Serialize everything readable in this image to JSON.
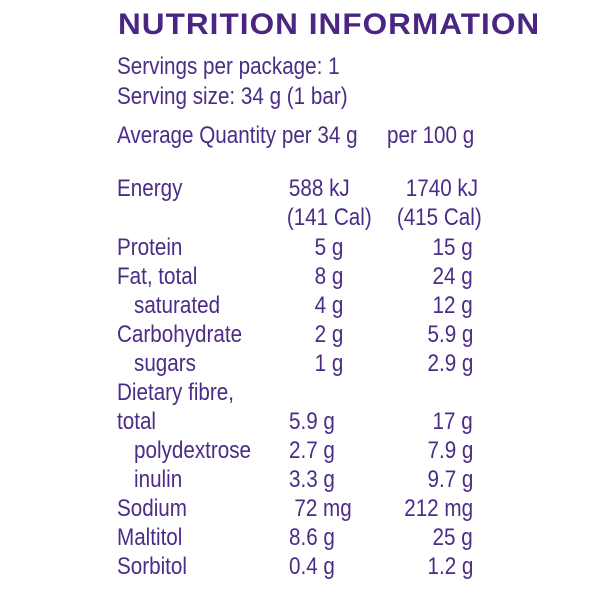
{
  "title": "NUTRITION INFORMATION",
  "servings_per_package": "Servings per package: 1",
  "serving_size": "Serving size: 34 g (1 bar)",
  "header": {
    "average_quantity": "Average Quantity per 34 g",
    "per_100g": "per 100 g"
  },
  "energy": {
    "label": "Energy",
    "per_serve_kj": "588 kJ",
    "per_100g_kj": "1740 kJ",
    "per_serve_cal": "(141 Cal)",
    "per_100g_cal": "(415 Cal)"
  },
  "rows": [
    {
      "label": "Protein",
      "per_serve": "5 g",
      "per_100g": "15 g"
    },
    {
      "label": "Fat, total",
      "per_serve": "8 g",
      "per_100g": "24 g"
    },
    {
      "label": "saturated",
      "per_serve": "4 g",
      "per_100g": "12 g"
    },
    {
      "label": "Carbohydrate",
      "per_serve": "2 g",
      "per_100g": "5.9 g"
    },
    {
      "label": "sugars",
      "per_serve": "1 g",
      "per_100g": "2.9 g"
    },
    {
      "label": "Dietary fibre,"
    },
    {
      "label": "total",
      "per_serve": "5.9 g",
      "per_100g": "17 g"
    },
    {
      "label": "polydextrose",
      "per_serve": "2.7 g",
      "per_100g": "7.9 g"
    },
    {
      "label": "inulin",
      "per_serve": "3.3 g",
      "per_100g": "9.7 g"
    },
    {
      "label": "Sodium",
      "per_serve": "72 mg",
      "per_100g": "212 mg"
    },
    {
      "label": "Maltitol",
      "per_serve": "8.6 g",
      "per_100g": "25 g"
    },
    {
      "label": "Sorbitol",
      "per_serve": "0.4 g",
      "per_100g": "1.2 g"
    }
  ],
  "colors": {
    "text": "#4b2c86",
    "title": "#4a2582",
    "background": "#ffffff"
  }
}
